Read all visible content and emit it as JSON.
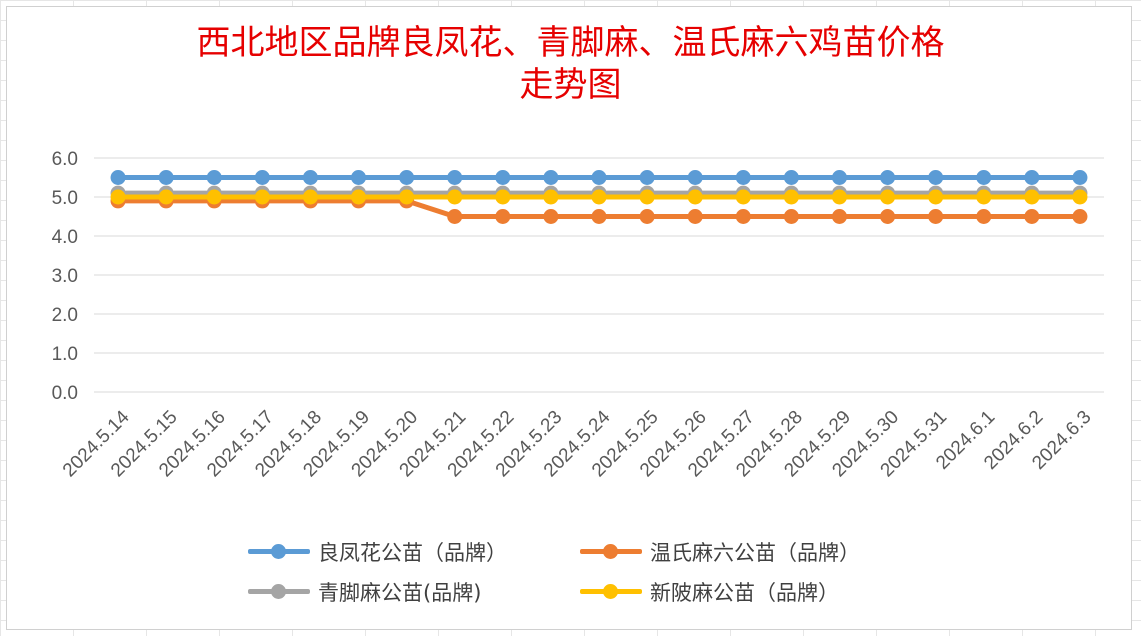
{
  "chart_data": {
    "type": "line",
    "title_lines": [
      "西北地区品牌良凤花、青脚麻、温氏麻六鸡苗价格",
      "走势图"
    ],
    "categories": [
      "2024.5.14",
      "2024.5.15",
      "2024.5.16",
      "2024.5.17",
      "2024.5.18",
      "2024.5.19",
      "2024.5.20",
      "2024.5.21",
      "2024.5.22",
      "2024.5.23",
      "2024.5.24",
      "2024.5.25",
      "2024.5.26",
      "2024.5.27",
      "2024.5.28",
      "2024.5.29",
      "2024.5.30",
      "2024.5.31",
      "2024.6.1",
      "2024.6.2",
      "2024.6.3"
    ],
    "ylim": [
      0,
      6
    ],
    "yticks": [
      "0.0",
      "1.0",
      "2.0",
      "3.0",
      "4.0",
      "5.0",
      "6.0"
    ],
    "grid": true,
    "legend_position": "bottom",
    "series": [
      {
        "name": "良凤花公苗（品牌）",
        "color": "#5b9bd5",
        "values": [
          5.5,
          5.5,
          5.5,
          5.5,
          5.5,
          5.5,
          5.5,
          5.5,
          5.5,
          5.5,
          5.5,
          5.5,
          5.5,
          5.5,
          5.5,
          5.5,
          5.5,
          5.5,
          5.5,
          5.5,
          5.5
        ]
      },
      {
        "name": "温氏麻六公苗（品牌）",
        "color": "#ed7d31",
        "values": [
          4.9,
          4.9,
          4.9,
          4.9,
          4.9,
          4.9,
          4.9,
          4.5,
          4.5,
          4.5,
          4.5,
          4.5,
          4.5,
          4.5,
          4.5,
          4.5,
          4.5,
          4.5,
          4.5,
          4.5,
          4.5
        ]
      },
      {
        "name": "青脚麻公苗(品牌)",
        "color": "#a5a5a5",
        "values": [
          5.1,
          5.1,
          5.1,
          5.1,
          5.1,
          5.1,
          5.1,
          5.1,
          5.1,
          5.1,
          5.1,
          5.1,
          5.1,
          5.1,
          5.1,
          5.1,
          5.1,
          5.1,
          5.1,
          5.1,
          5.1
        ]
      },
      {
        "name": "新陂麻公苗（品牌）",
        "color": "#ffc000",
        "values": [
          5.0,
          5.0,
          5.0,
          5.0,
          5.0,
          5.0,
          5.0,
          5.0,
          5.0,
          5.0,
          5.0,
          5.0,
          5.0,
          5.0,
          5.0,
          5.0,
          5.0,
          5.0,
          5.0,
          5.0,
          5.0
        ]
      }
    ]
  }
}
